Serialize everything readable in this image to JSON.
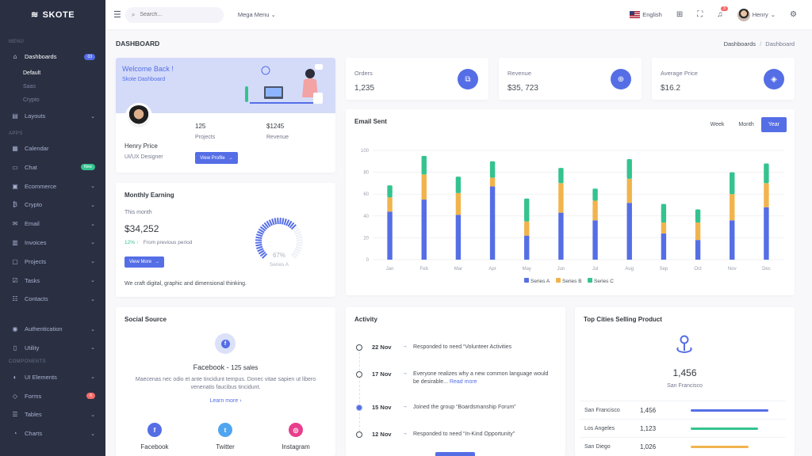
{
  "brand": {
    "name": "SKOTE"
  },
  "sidebar": {
    "section_menu": "MENU",
    "section_apps": "APPS",
    "section_components": "COMPONENTS",
    "dashboards": {
      "label": "Dashboards",
      "badge": "03",
      "subs": [
        "Default",
        "Saas",
        "Crypto"
      ]
    },
    "layouts": "Layouts",
    "apps": [
      {
        "label": "Calendar"
      },
      {
        "label": "Chat",
        "badge": "New"
      },
      {
        "label": "Ecommerce"
      },
      {
        "label": "Crypto"
      },
      {
        "label": "Email"
      },
      {
        "label": "Invoices"
      },
      {
        "label": "Projects"
      },
      {
        "label": "Tasks"
      },
      {
        "label": "Contacts"
      }
    ],
    "pages": [
      "Authentication",
      "Utility"
    ],
    "components": [
      {
        "label": "UI Elements"
      },
      {
        "label": "Forms",
        "badge": "6"
      },
      {
        "label": "Tables"
      },
      {
        "label": "Charts"
      }
    ]
  },
  "topbar": {
    "search_placeholder": "Search...",
    "mega_menu": "Mega Menu",
    "language": "English",
    "notification_count": "3",
    "user_name": "Henry"
  },
  "page": {
    "title": "DASHBOARD",
    "breadcrumb_parent": "Dashboards",
    "breadcrumb_sep": "/",
    "breadcrumb_current": "Dashboard"
  },
  "welcome": {
    "heading": "Welcome Back !",
    "sub": "Skote Dashboard",
    "name": "Henry Price",
    "role": "UI/UX Designer",
    "projects_value": "125",
    "projects_label": "Projects",
    "revenue_value": "$1245",
    "revenue_label": "Revenue",
    "button": "View Profile"
  },
  "earning": {
    "title": "Monthly Earning",
    "period": "This month",
    "value": "$34,252",
    "change": "12%",
    "change_text": "From previous period",
    "button": "View More",
    "gauge_value": "67%",
    "gauge_label": "Series A",
    "gauge_fraction": 0.67,
    "footer": "We craft digital, graphic and dimensional thinking."
  },
  "stats": [
    {
      "label": "Orders",
      "value": "1,235",
      "icon": "copy-icon"
    },
    {
      "label": "Revenue",
      "value": "$35, 723",
      "icon": "archive-icon"
    },
    {
      "label": "Average Price",
      "value": "$16.2",
      "icon": "tag-icon"
    }
  ],
  "email_sent": {
    "title": "Email Sent",
    "tabs": [
      "Week",
      "Month",
      "Year"
    ],
    "active_tab": "Year"
  },
  "chart_data": {
    "type": "bar",
    "stacked": true,
    "title": "Email Sent",
    "categories": [
      "Jan",
      "Feb",
      "Mar",
      "Apr",
      "May",
      "Jun",
      "Jul",
      "Aug",
      "Sep",
      "Oct",
      "Nov",
      "Dec"
    ],
    "series": [
      {
        "name": "Series A",
        "color": "#556ee6",
        "values": [
          44,
          55,
          41,
          67,
          22,
          43,
          36,
          52,
          24,
          18,
          36,
          48
        ]
      },
      {
        "name": "Series B",
        "color": "#f1b44c",
        "values": [
          13,
          23,
          20,
          8,
          13,
          27,
          18,
          22,
          10,
          16,
          24,
          22
        ]
      },
      {
        "name": "Series C",
        "color": "#34c38f",
        "values": [
          11,
          17,
          15,
          15,
          21,
          14,
          11,
          18,
          17,
          12,
          20,
          18
        ]
      }
    ],
    "yticks": [
      "0",
      "20",
      "40",
      "60",
      "80",
      "100"
    ],
    "ylim": [
      0,
      100
    ],
    "grid": true,
    "legend": "bottom-center"
  },
  "social": {
    "title": "Social Source",
    "network": "Facebook",
    "sales": "125 sales",
    "desc": "Maecenas nec odio et ante tincidunt tempus. Donec vitae sapien ut libero venenatis faucibus tincidunt.",
    "learn_more": "Learn more",
    "items": [
      {
        "label": "Facebook",
        "color": "#556ee6",
        "glyph": "f"
      },
      {
        "label": "Twitter",
        "color": "#50a5f1",
        "glyph": "t"
      },
      {
        "label": "Instagram",
        "color": "#e83e8c",
        "glyph": "◎"
      }
    ]
  },
  "activity": {
    "title": "Activity",
    "items": [
      {
        "date": "22 Nov",
        "text": "Responded to need “Volunteer Activities"
      },
      {
        "date": "17 Nov",
        "text": "Everyone realizes why a new common language would be desirable...",
        "link": "Read more"
      },
      {
        "date": "15 Nov",
        "text": "Joined the group “Boardsmanship Forum”"
      },
      {
        "date": "12 Nov",
        "text": "Responded to need “In-Kind Opportunity”"
      }
    ]
  },
  "cities": {
    "title": "Top Cities Selling Product",
    "value": "1,456",
    "city": "San Francisco",
    "rows": [
      {
        "name": "San Francisco",
        "value": "1,456",
        "pct": 0.94,
        "color": "#556ee6"
      },
      {
        "name": "Los Angeles",
        "value": "1,123",
        "pct": 0.82,
        "color": "#34c38f"
      },
      {
        "name": "San Diego",
        "value": "1,026",
        "pct": 0.7,
        "color": "#f1b44c"
      }
    ]
  }
}
